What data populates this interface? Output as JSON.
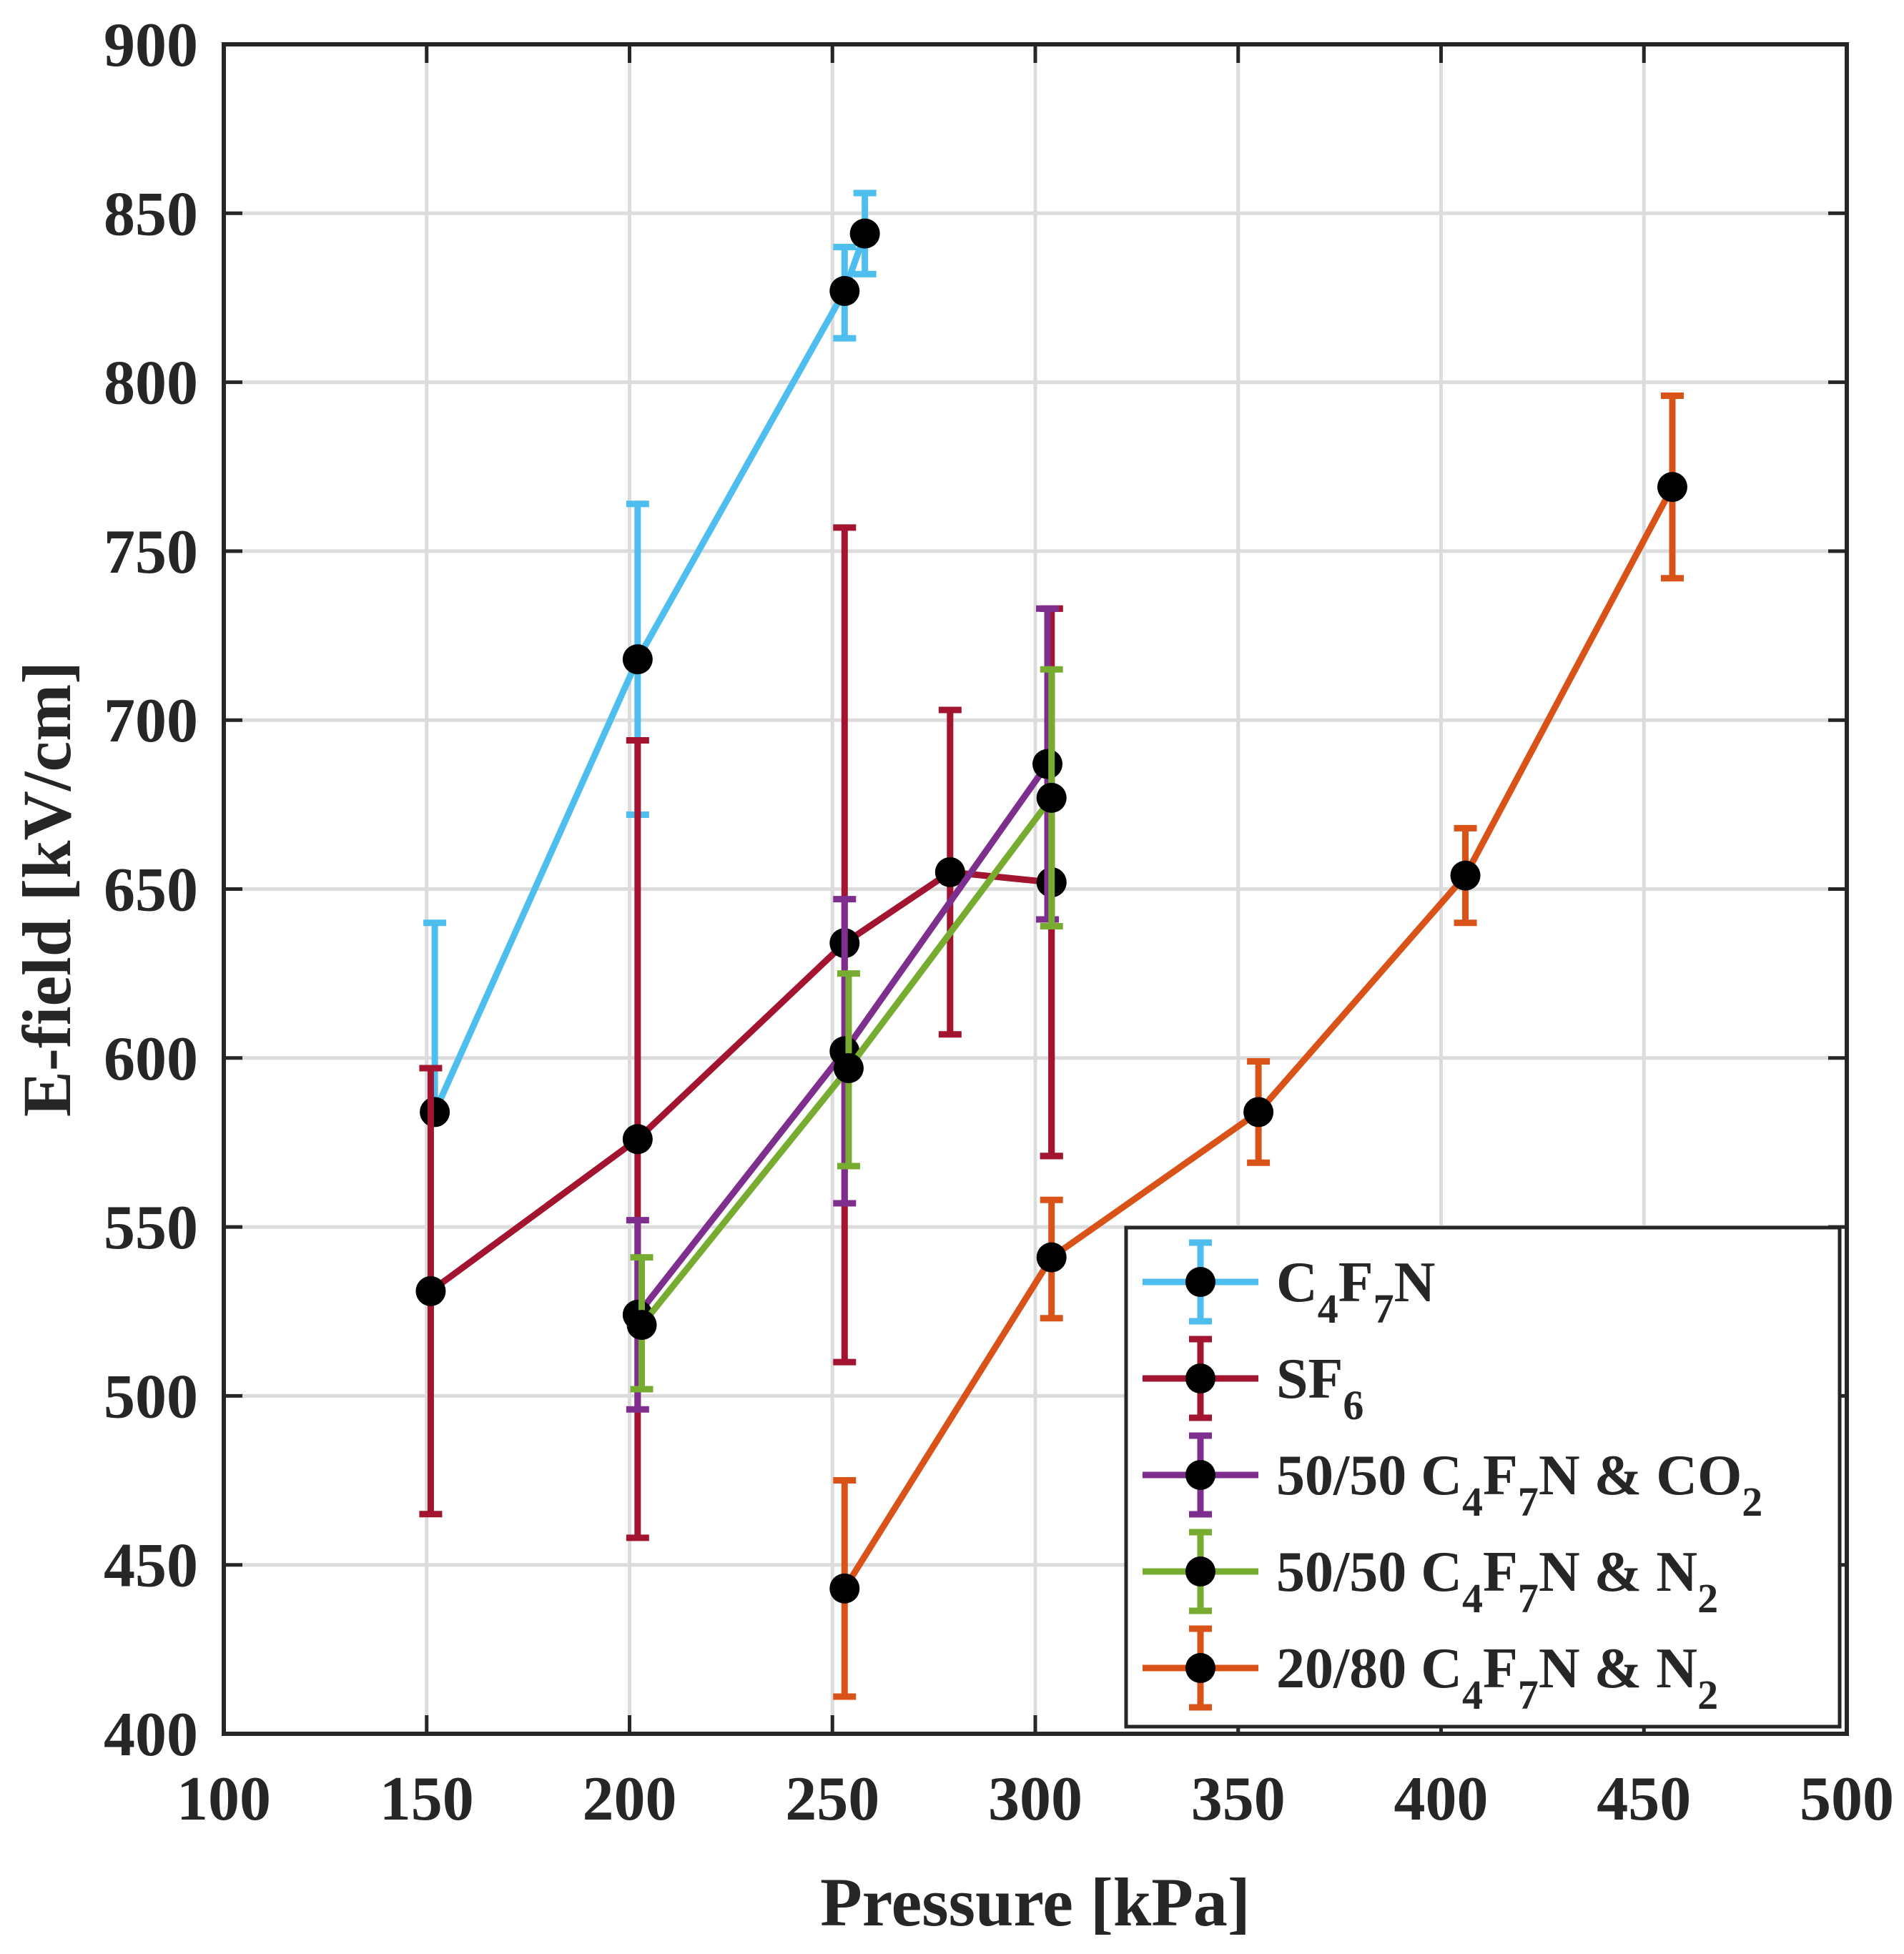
{
  "chart_data": {
    "type": "line",
    "title": "",
    "xlabel": "Pressure [kPa]",
    "ylabel": "E-field [kV/cm]",
    "xlim": [
      100,
      500
    ],
    "ylim": [
      400,
      900
    ],
    "xticks": [
      100,
      150,
      200,
      250,
      300,
      350,
      400,
      450,
      500
    ],
    "yticks": [
      400,
      450,
      500,
      550,
      600,
      650,
      700,
      750,
      800,
      850,
      900
    ],
    "grid": true,
    "legend_position": "bottom-right",
    "series": [
      {
        "name": "C4F7N",
        "legend": [
          {
            "t": "C"
          },
          {
            "t": "4",
            "sub": true
          },
          {
            "t": "F"
          },
          {
            "t": "7",
            "sub": true
          },
          {
            "t": "N"
          }
        ],
        "color": "#4DBEEE",
        "x": [
          152,
          202,
          253,
          258
        ],
        "y": [
          584,
          718,
          827,
          844
        ],
        "err_low": [
          584,
          672,
          813,
          832
        ],
        "err_high": [
          640,
          764,
          840,
          856
        ]
      },
      {
        "name": "SF6",
        "legend": [
          {
            "t": "SF"
          },
          {
            "t": "6",
            "sub": true
          }
        ],
        "color": "#A2142F",
        "x": [
          151,
          202,
          253,
          279,
          304,
          304
        ],
        "y": [
          531,
          576,
          634,
          655,
          652,
          652
        ],
        "err_low": [
          465,
          458,
          510,
          607,
          571,
          571
        ],
        "err_high": [
          597,
          694,
          757,
          703,
          733,
          733
        ]
      },
      {
        "name": "50/50 C4F7N & CO2",
        "legend": [
          {
            "t": "50/50 C"
          },
          {
            "t": "4",
            "sub": true
          },
          {
            "t": "F"
          },
          {
            "t": "7",
            "sub": true
          },
          {
            "t": "N & CO"
          },
          {
            "t": "2",
            "sub": true
          }
        ],
        "color": "#7E2F8E",
        "x": [
          202,
          253,
          303
        ],
        "y": [
          524,
          602,
          687
        ],
        "err_low": [
          496,
          557,
          641
        ],
        "err_high": [
          552,
          647,
          733
        ]
      },
      {
        "name": "50/50 C4F7N & N2",
        "legend": [
          {
            "t": "50/50 C"
          },
          {
            "t": "4",
            "sub": true
          },
          {
            "t": "F"
          },
          {
            "t": "7",
            "sub": true
          },
          {
            "t": "N & N"
          },
          {
            "t": "2",
            "sub": true
          }
        ],
        "color": "#77AC30",
        "x": [
          203,
          254,
          304
        ],
        "y": [
          521,
          597,
          677
        ],
        "err_low": [
          502,
          568,
          639
        ],
        "err_high": [
          541,
          625,
          715
        ]
      },
      {
        "name": "20/80 C4F7N & N2",
        "legend": [
          {
            "t": "20/80 C"
          },
          {
            "t": "4",
            "sub": true
          },
          {
            "t": "F"
          },
          {
            "t": "7",
            "sub": true
          },
          {
            "t": "N & N"
          },
          {
            "t": "2",
            "sub": true
          }
        ],
        "color": "#D95319",
        "x": [
          253,
          304,
          355,
          406,
          457
        ],
        "y": [
          443,
          541,
          584,
          654,
          769
        ],
        "err_low": [
          411,
          523,
          569,
          640,
          742
        ],
        "err_high": [
          475,
          558,
          599,
          668,
          796
        ]
      }
    ]
  }
}
